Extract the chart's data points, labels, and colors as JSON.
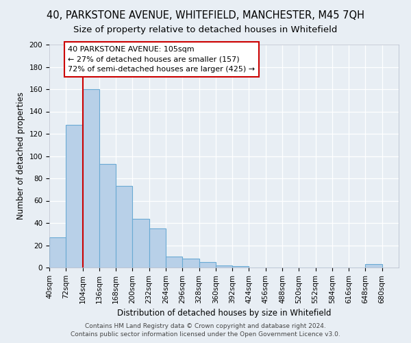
{
  "title_line1": "40, PARKSTONE AVENUE, WHITEFIELD, MANCHESTER, M45 7QH",
  "title_line2": "Size of property relative to detached houses in Whitefield",
  "xlabel": "Distribution of detached houses by size in Whitefield",
  "ylabel": "Number of detached properties",
  "bar_heights": [
    27,
    128,
    160,
    93,
    73,
    44,
    35,
    10,
    8,
    5,
    2,
    1,
    0,
    0,
    0,
    0,
    0,
    0,
    0,
    3
  ],
  "bin_left_edges": [
    40,
    72,
    104,
    136,
    168,
    200,
    232,
    264,
    296,
    328,
    360,
    392,
    424,
    456,
    488,
    520,
    552,
    584,
    616,
    648
  ],
  "bin_width": 32,
  "bin_labels": [
    "40sqm",
    "72sqm",
    "104sqm",
    "136sqm",
    "168sqm",
    "200sqm",
    "232sqm",
    "264sqm",
    "296sqm",
    "328sqm",
    "360sqm",
    "392sqm",
    "424sqm",
    "456sqm",
    "488sqm",
    "520sqm",
    "552sqm",
    "584sqm",
    "616sqm",
    "648sqm",
    "680sqm"
  ],
  "bar_color": "#b8d0e8",
  "bar_edge_color": "#6aaad4",
  "red_line_x": 104,
  "red_line_color": "#cc0000",
  "annotation_line1": "40 PARKSTONE AVENUE: 105sqm",
  "annotation_line2": "← 27% of detached houses are smaller (157)",
  "annotation_line3": "72% of semi-detached houses are larger (425) →",
  "annotation_box_color": "#ffffff",
  "annotation_box_edge": "#cc0000",
  "ylim": [
    0,
    200
  ],
  "yticks": [
    0,
    20,
    40,
    60,
    80,
    100,
    120,
    140,
    160,
    180,
    200
  ],
  "xlim_left": 40,
  "xlim_right": 712,
  "background_color": "#e8eef4",
  "footer_line1": "Contains HM Land Registry data © Crown copyright and database right 2024.",
  "footer_line2": "Contains public sector information licensed under the Open Government Licence v3.0.",
  "title_fontsize": 10.5,
  "subtitle_fontsize": 9.5,
  "axis_label_fontsize": 8.5,
  "tick_fontsize": 7.5,
  "annotation_fontsize": 8,
  "footer_fontsize": 6.5
}
